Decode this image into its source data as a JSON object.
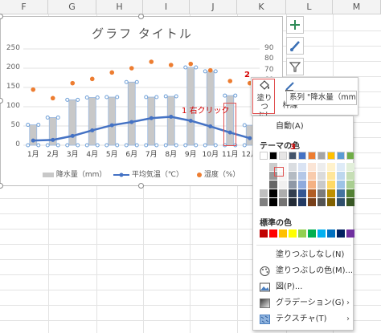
{
  "sheet": {
    "columns": [
      "F",
      "G",
      "H",
      "I",
      "J",
      "K",
      "L",
      "M"
    ]
  },
  "chart": {
    "title": "グラフ タイトル",
    "y_left_ticks": [
      "250",
      "200",
      "150",
      "100",
      "50",
      "0"
    ],
    "y_right_ticks": [
      "90",
      "80",
      "70",
      "60",
      "50",
      "40",
      "30",
      "20",
      "10",
      "0"
    ]
  },
  "chart_data": {
    "type": "bar",
    "title": "グラフ タイトル",
    "categories": [
      "1月",
      "2月",
      "3月",
      "4月",
      "5月",
      "6月",
      "7月",
      "8月",
      "9月",
      "10月",
      "11月",
      "12月"
    ],
    "ylim_left": [
      0,
      250
    ],
    "ylim_right": [
      0,
      90
    ],
    "series": [
      {
        "name": "降水量（mm）",
        "type": "bar",
        "axis": "left",
        "color": "#c8c8c8",
        "values": [
          53,
          72,
          118,
          124,
          125,
          164,
          125,
          127,
          202,
          192,
          129,
          52
        ]
      },
      {
        "name": "平均気温（℃）",
        "type": "line",
        "axis": "right",
        "color": "#4472c4",
        "values": [
          4.4,
          5.0,
          8.7,
          13.9,
          18.7,
          21.7,
          25.3,
          26.6,
          22.9,
          17.6,
          11.9,
          6.6
        ]
      },
      {
        "name": "湿度（%）",
        "type": "scatter",
        "axis": "right",
        "color": "#ed7d31",
        "values": [
          52,
          44,
          58,
          62,
          68,
          72,
          78,
          75,
          76,
          70,
          60,
          58
        ]
      }
    ],
    "legend_position": "bottom"
  },
  "annotations": {
    "step1_num": "1",
    "step1_text": "右クリック",
    "step2_num": "2",
    "step3_num": "3"
  },
  "toolbar": {
    "fill_label_line1": "塗りつ",
    "fill_label_line2": "ぶし",
    "outline_label": "枠線",
    "series_selector": "系列 \"降水量（mm）\""
  },
  "fill_menu": {
    "automatic": "自動(A)",
    "theme_colors_label": "テーマの色",
    "standard_colors_label": "標準の色",
    "no_fill": "塗りつぶしなし(N)",
    "more_colors": "塗りつぶしの色(M)...",
    "picture": "図(P)...",
    "gradient": "グラデーション(G)",
    "texture": "テクスチャ(T)",
    "theme_top_row": [
      "#ffffff",
      "#000000",
      "#e7e6e6",
      "#44546a",
      "#4472c4",
      "#ed7d31",
      "#a5a5a5",
      "#ffc000",
      "#5b9bd5",
      "#70ad47"
    ],
    "standard_colors": [
      "#c00000",
      "#ff0000",
      "#ffc000",
      "#ffff00",
      "#92d050",
      "#00b050",
      "#00b0f0",
      "#0070c0",
      "#002060",
      "#7030a0"
    ]
  }
}
